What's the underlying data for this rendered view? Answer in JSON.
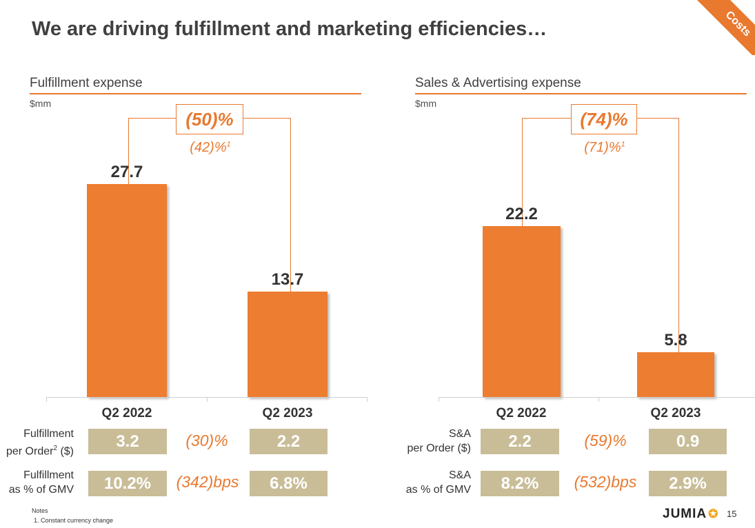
{
  "slide": {
    "title": "We are driving fulfillment and marketing efficiencies…",
    "corner_tag": "Costs",
    "page_number": "15",
    "logo_text": "JUMIA",
    "notes_heading": "Notes",
    "notes": [
      "1.  Constant currency change"
    ]
  },
  "colors": {
    "accent": "#ed7d31",
    "kpi_box": "#c9bd98",
    "change_text": "#e8792f"
  },
  "chart_data": [
    {
      "type": "bar",
      "title": "Fulfillment expense",
      "unit": "$mm",
      "categories": [
        "Q2 2022",
        "Q2 2023"
      ],
      "values": [
        27.7,
        13.7
      ],
      "value_labels": [
        "27.7",
        "13.7"
      ],
      "change": "(50)%",
      "change_cc": "(42)%",
      "change_cc_note": "1",
      "kpis": [
        {
          "label_line1": "Fulfillment",
          "label_line2": "per Order",
          "label_sup": "2",
          "label_suffix": " ($)",
          "v1": "3.2",
          "change": "(30)%",
          "v2": "2.2"
        },
        {
          "label_line1": "Fulfillment",
          "label_line2": "as % of GMV",
          "label_sup": "",
          "label_suffix": "",
          "v1": "10.2%",
          "change": "(342)bps",
          "v2": "6.8%"
        }
      ]
    },
    {
      "type": "bar",
      "title": "Sales & Advertising expense",
      "unit": "$mm",
      "categories": [
        "Q2 2022",
        "Q2 2023"
      ],
      "values": [
        22.2,
        5.8
      ],
      "value_labels": [
        "22.2",
        "5.8"
      ],
      "change": "(74)%",
      "change_cc": "(71)%",
      "change_cc_note": "1",
      "kpis": [
        {
          "label_line1": "S&A",
          "label_line2": "per Order ($)",
          "label_sup": "",
          "label_suffix": "",
          "v1": "2.2",
          "change": "(59)%",
          "v2": "0.9"
        },
        {
          "label_line1": "S&A",
          "label_line2": "as % of GMV",
          "label_sup": "",
          "label_suffix": "",
          "v1": "8.2%",
          "change": "(532)bps",
          "v2": "2.9%"
        }
      ]
    }
  ]
}
